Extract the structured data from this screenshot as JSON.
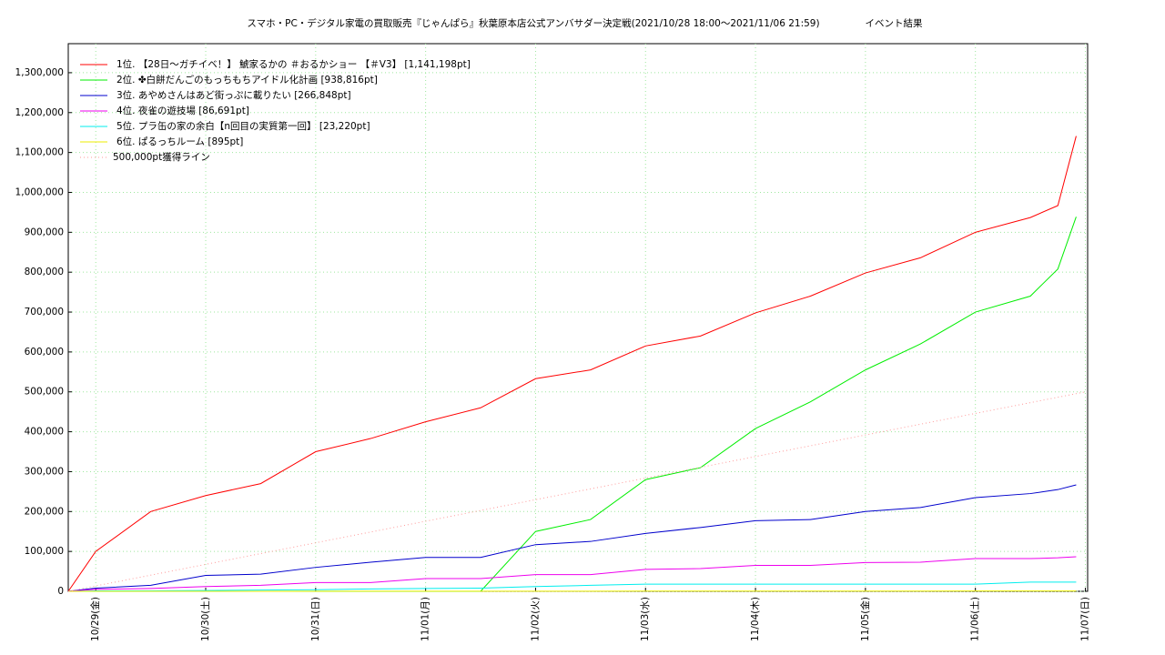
{
  "chart_data": {
    "type": "line",
    "title": "スマホ・PC・デジタル家電の買取販売『じゃんぱら』秋葉原本店公式アンバサダー決定戦(2021/10/28 18:00～2021/11/06 21:59)",
    "subtitle": "イベント結果",
    "xlim": [
      0,
      222.5
    ],
    "xticks": [
      {
        "value": 6,
        "label": "10/29(金)"
      },
      {
        "value": 30,
        "label": "10/30(土)"
      },
      {
        "value": 54,
        "label": "10/31(日)"
      },
      {
        "value": 78,
        "label": "11/01(月)"
      },
      {
        "value": 102,
        "label": "11/02(火)"
      },
      {
        "value": 126,
        "label": "11/03(水)"
      },
      {
        "value": 150,
        "label": "11/04(木)"
      },
      {
        "value": 174,
        "label": "11/05(金)"
      },
      {
        "value": 198,
        "label": "11/06(土)"
      },
      {
        "value": 222,
        "label": "11/07(日)"
      }
    ],
    "ylim": [
      0,
      1372800
    ],
    "yticks": [
      0,
      {
        "value": 100000,
        "label": "100,000"
      },
      {
        "value": 200000,
        "label": "200,000"
      },
      {
        "value": 300000,
        "label": "300,000"
      },
      {
        "value": 400000,
        "label": "400,000"
      },
      {
        "value": 500000,
        "label": "500,000"
      },
      {
        "value": 600000,
        "label": "600,000"
      },
      {
        "value": 700000,
        "label": "700,000"
      },
      {
        "value": 800000,
        "label": "800,000"
      },
      {
        "value": 900000,
        "label": "900,000"
      },
      {
        "value": 1000000,
        "label": "1,000,000"
      },
      {
        "value": 1100000,
        "label": "1,100,000"
      },
      {
        "value": 1200000,
        "label": "1,200,000"
      },
      {
        "value": 1300000,
        "label": "1,300,000"
      }
    ],
    "grid": true,
    "series": [
      {
        "name": "1位. 【28日〜ガチイベ！】 鯱家るかの ＃おるかショー 【＃V3】 [1,141,198pt]",
        "color": "#ff0000",
        "x": [
          0,
          6,
          18,
          30,
          42,
          54,
          66,
          78,
          90,
          102,
          114,
          126,
          138,
          150,
          162,
          174,
          186,
          198,
          210,
          216,
          220
        ],
        "values": [
          0,
          100000,
          200000,
          240000,
          270000,
          350000,
          383000,
          425000,
          460000,
          533000,
          555000,
          615000,
          640000,
          698000,
          740000,
          798000,
          836000,
          900000,
          937000,
          967000,
          1141198
        ]
      },
      {
        "name": "2位. ✤白餅だんごのもっちもちアイドル化計画 [938,816pt]",
        "color": "#00ee00",
        "x": [
          0,
          6,
          18,
          30,
          42,
          54,
          66,
          78,
          90,
          102,
          114,
          126,
          138,
          150,
          162,
          174,
          186,
          198,
          210,
          216,
          220
        ],
        "values": [
          0,
          0,
          0,
          0,
          0,
          0,
          0,
          0,
          0,
          150000,
          180000,
          280000,
          310000,
          408000,
          475000,
          555000,
          620000,
          700000,
          740000,
          808000,
          938816
        ]
      },
      {
        "name": "3位. あやめさんはあど街っぷに載りたい [266,848pt]",
        "color": "#0000cc",
        "x": [
          0,
          6,
          18,
          30,
          42,
          54,
          66,
          78,
          90,
          102,
          114,
          126,
          138,
          150,
          162,
          174,
          186,
          198,
          210,
          216,
          220
        ],
        "values": [
          0,
          8000,
          15000,
          40000,
          43000,
          60000,
          73000,
          85000,
          85000,
          117000,
          125000,
          145000,
          160000,
          177000,
          180000,
          200000,
          210000,
          235000,
          245000,
          255000,
          266848
        ]
      },
      {
        "name": "4位. 夜雀の遊技場 [86,691pt]",
        "color": "#ee00ee",
        "x": [
          0,
          6,
          18,
          30,
          42,
          54,
          66,
          78,
          90,
          102,
          114,
          126,
          138,
          150,
          162,
          174,
          186,
          198,
          210,
          216,
          220
        ],
        "values": [
          0,
          5000,
          7000,
          12000,
          15000,
          22000,
          22000,
          32000,
          32000,
          42000,
          42000,
          55000,
          57000,
          65000,
          65000,
          72000,
          73000,
          82000,
          82000,
          84000,
          86691
        ]
      },
      {
        "name": "5位. プラ缶の家の余白【n回目の実質第一回】 [23,220pt]",
        "color": "#00eeee",
        "x": [
          0,
          6,
          18,
          30,
          42,
          54,
          66,
          78,
          90,
          102,
          114,
          126,
          138,
          150,
          162,
          174,
          186,
          198,
          210,
          216,
          220
        ],
        "values": [
          0,
          1000,
          1000,
          2000,
          3000,
          4000,
          6000,
          7000,
          8000,
          12000,
          15000,
          18000,
          18000,
          18000,
          18000,
          18000,
          18000,
          18000,
          23000,
          23000,
          23220
        ]
      },
      {
        "name": "6位. ぱるっちルーム [895pt]",
        "color": "#eeee00",
        "x": [
          0,
          6,
          18,
          30,
          42,
          54,
          66,
          78,
          90,
          102,
          114,
          126,
          138,
          150,
          162,
          174,
          186,
          198,
          210,
          216,
          220
        ],
        "values": [
          0,
          0,
          0,
          100,
          100,
          200,
          200,
          300,
          300,
          400,
          400,
          500,
          500,
          600,
          600,
          700,
          700,
          800,
          800,
          850,
          895
        ]
      },
      {
        "name": "500,000pt獲得ライン",
        "color": "#ff9999",
        "dash": true,
        "x": [
          0,
          222
        ],
        "values": [
          0,
          500000
        ]
      }
    ]
  }
}
